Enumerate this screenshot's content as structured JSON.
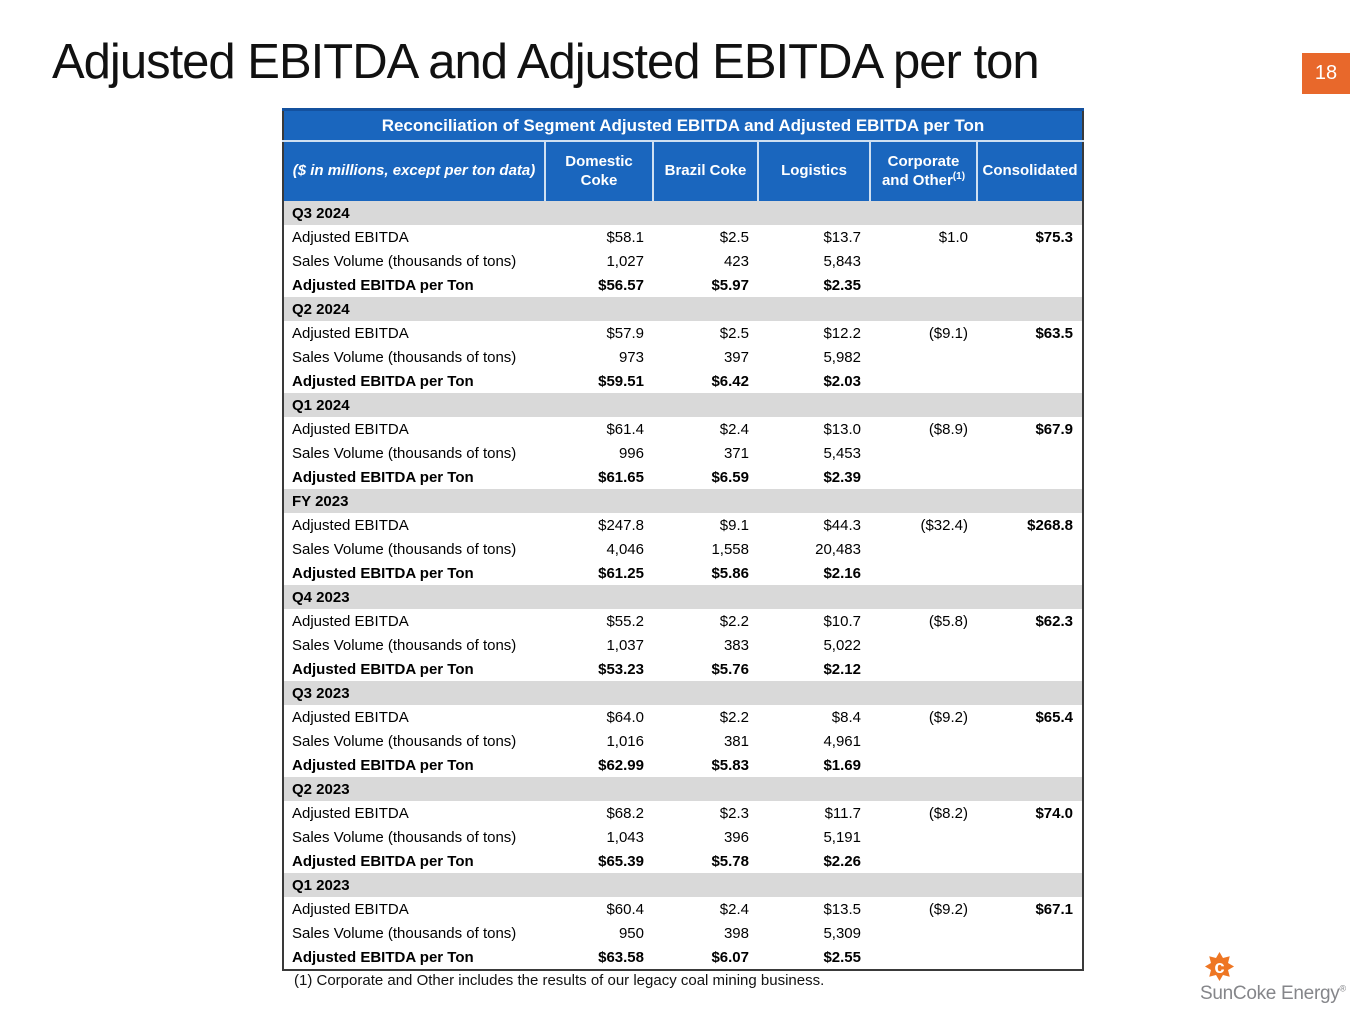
{
  "page": {
    "title": "Adjusted EBITDA and Adjusted EBITDA per ton",
    "page_number": "18",
    "footnote": "(1) Corporate and Other includes the results of our legacy coal mining business.",
    "logo_text": "SunCoke Energy",
    "logo_registered": "®"
  },
  "colors": {
    "header_blue": "#1A66BE",
    "header_border_dark": "#14519E",
    "section_gray": "#D9D9D9",
    "badge_orange": "#E8682B",
    "logo_orange": "#EE7623",
    "logo_text_gray": "#85868A"
  },
  "table": {
    "caption": "Reconciliation of Segment Adjusted EBITDA and Adjusted EBITDA per Ton",
    "unit_note": "($ in millions, except per ton data)",
    "header": {
      "col_domestic_line1": "Domestic",
      "col_domestic_line2": "Coke",
      "col_brazil": "Brazil Coke",
      "col_logistics": "Logistics",
      "col_corporate_line1": "Corporate",
      "col_corporate_line2": "and Other",
      "col_corporate_sup": "(1)",
      "col_consolidated": "Consolidated"
    },
    "sections": [
      {
        "period": "Q3 2024",
        "rows": [
          {
            "label": "Adjusted EBITDA",
            "bold": false,
            "values": [
              "$58.1",
              "$2.5",
              "$13.7",
              "$1.0",
              "$75.3"
            ]
          },
          {
            "label": "Sales Volume (thousands of tons)",
            "bold": false,
            "values": [
              "1,027",
              "423",
              "5,843",
              "",
              ""
            ]
          },
          {
            "label": "Adjusted EBITDA per Ton",
            "bold": true,
            "values": [
              "$56.57",
              "$5.97",
              "$2.35",
              "",
              ""
            ]
          }
        ]
      },
      {
        "period": "Q2 2024",
        "rows": [
          {
            "label": "Adjusted EBITDA",
            "bold": false,
            "values": [
              "$57.9",
              "$2.5",
              "$12.2",
              "($9.1)",
              "$63.5"
            ]
          },
          {
            "label": "Sales Volume (thousands of tons)",
            "bold": false,
            "values": [
              "973",
              "397",
              "5,982",
              "",
              ""
            ]
          },
          {
            "label": "Adjusted EBITDA per Ton",
            "bold": true,
            "values": [
              "$59.51",
              "$6.42",
              "$2.03",
              "",
              ""
            ]
          }
        ]
      },
      {
        "period": "Q1 2024",
        "rows": [
          {
            "label": "Adjusted EBITDA",
            "bold": false,
            "values": [
              "$61.4",
              "$2.4",
              "$13.0",
              "($8.9)",
              "$67.9"
            ]
          },
          {
            "label": "Sales Volume (thousands of tons)",
            "bold": false,
            "values": [
              "996",
              "371",
              "5,453",
              "",
              ""
            ]
          },
          {
            "label": "Adjusted EBITDA per Ton",
            "bold": true,
            "values": [
              "$61.65",
              "$6.59",
              "$2.39",
              "",
              ""
            ]
          }
        ]
      },
      {
        "period": "FY 2023",
        "rows": [
          {
            "label": "Adjusted EBITDA",
            "bold": false,
            "values": [
              "$247.8",
              "$9.1",
              "$44.3",
              "($32.4)",
              "$268.8"
            ]
          },
          {
            "label": "Sales Volume (thousands of tons)",
            "bold": false,
            "values": [
              "4,046",
              "1,558",
              "20,483",
              "",
              ""
            ]
          },
          {
            "label": "Adjusted EBITDA per Ton",
            "bold": true,
            "values": [
              "$61.25",
              "$5.86",
              "$2.16",
              "",
              ""
            ]
          }
        ]
      },
      {
        "period": "Q4 2023",
        "rows": [
          {
            "label": "Adjusted EBITDA",
            "bold": false,
            "values": [
              "$55.2",
              "$2.2",
              "$10.7",
              "($5.8)",
              "$62.3"
            ]
          },
          {
            "label": "Sales Volume (thousands of tons)",
            "bold": false,
            "values": [
              "1,037",
              "383",
              "5,022",
              "",
              ""
            ]
          },
          {
            "label": "Adjusted EBITDA per Ton",
            "bold": true,
            "values": [
              "$53.23",
              "$5.76",
              "$2.12",
              "",
              ""
            ]
          }
        ]
      },
      {
        "period": "Q3 2023",
        "rows": [
          {
            "label": "Adjusted EBITDA",
            "bold": false,
            "values": [
              "$64.0",
              "$2.2",
              "$8.4",
              "($9.2)",
              "$65.4"
            ]
          },
          {
            "label": "Sales Volume (thousands of tons)",
            "bold": false,
            "values": [
              "1,016",
              "381",
              "4,961",
              "",
              ""
            ]
          },
          {
            "label": "Adjusted EBITDA per Ton",
            "bold": true,
            "values": [
              "$62.99",
              "$5.83",
              "$1.69",
              "",
              ""
            ]
          }
        ]
      },
      {
        "period": "Q2 2023",
        "rows": [
          {
            "label": "Adjusted EBITDA",
            "bold": false,
            "values": [
              "$68.2",
              "$2.3",
              "$11.7",
              "($8.2)",
              "$74.0"
            ]
          },
          {
            "label": "Sales Volume (thousands of tons)",
            "bold": false,
            "values": [
              "1,043",
              "396",
              "5,191",
              "",
              ""
            ]
          },
          {
            "label": "Adjusted EBITDA per Ton",
            "bold": true,
            "values": [
              "$65.39",
              "$5.78",
              "$2.26",
              "",
              ""
            ]
          }
        ]
      },
      {
        "period": "Q1 2023",
        "rows": [
          {
            "label": "Adjusted EBITDA",
            "bold": false,
            "values": [
              "$60.4",
              "$2.4",
              "$13.5",
              "($9.2)",
              "$67.1"
            ]
          },
          {
            "label": "Sales Volume (thousands of tons)",
            "bold": false,
            "values": [
              "950",
              "398",
              "5,309",
              "",
              ""
            ]
          },
          {
            "label": "Adjusted EBITDA per Ton",
            "bold": true,
            "values": [
              "$63.58",
              "$6.07",
              "$2.55",
              "",
              ""
            ]
          }
        ]
      }
    ]
  }
}
